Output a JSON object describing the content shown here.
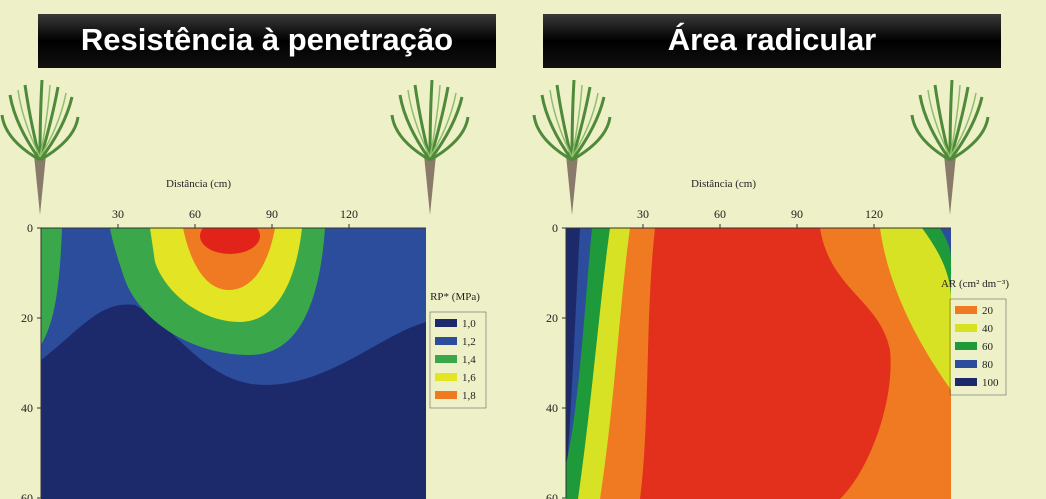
{
  "chart_data": [
    {
      "type": "contour",
      "title": "Resistência à penetração",
      "x_label": "Distância (cm)",
      "xlim": [
        0,
        150
      ],
      "xticks": [
        30,
        60,
        90,
        120
      ],
      "ylim": [
        0,
        60
      ],
      "yticks": [
        0,
        20,
        40,
        60
      ],
      "legend": {
        "title": "RP* (MPa)",
        "levels": [
          {
            "value": 1.0,
            "label": "1,0",
            "color": "#1c2a6c"
          },
          {
            "value": 1.2,
            "label": "1,2",
            "color": "#2c4c9c"
          },
          {
            "value": 1.4,
            "label": "1,4",
            "color": "#3aa84a"
          },
          {
            "value": 1.6,
            "label": "1,6",
            "color": "#e2e424"
          },
          {
            "value": 1.8,
            "label": "1,8",
            "color": "#f07a22"
          }
        ]
      }
    },
    {
      "type": "contour",
      "title": "Área radicular",
      "x_label": "Distância (cm)",
      "xlim": [
        0,
        150
      ],
      "xticks": [
        30,
        60,
        90,
        120
      ],
      "ylim": [
        0,
        60
      ],
      "yticks": [
        0,
        20,
        40,
        60
      ],
      "legend": {
        "title": "AR (cm² dm⁻³)",
        "levels": [
          {
            "value": 20,
            "label": "20",
            "color": "#f07a22"
          },
          {
            "value": 40,
            "label": "40",
            "color": "#d8e224"
          },
          {
            "value": 60,
            "label": "60",
            "color": "#1f9a3a"
          },
          {
            "value": 80,
            "label": "80",
            "color": "#2c4c9c"
          },
          {
            "value": 100,
            "label": "100",
            "color": "#1c2a6c"
          }
        ]
      }
    }
  ]
}
